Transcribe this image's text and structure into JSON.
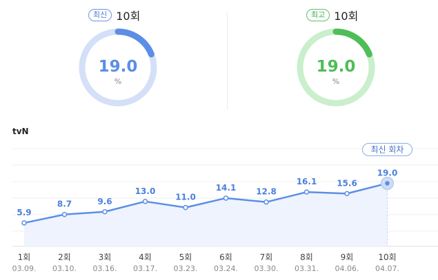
{
  "left_panel": {
    "badge": "최신",
    "episode": "10회",
    "value": "19.0",
    "unit": "%",
    "fraction": 0.19,
    "color": "#5b8ee6",
    "track_color": "#d4e0f8"
  },
  "right_panel": {
    "badge": "최고",
    "episode": "10회",
    "value": "19.0",
    "unit": "%",
    "fraction": 0.19,
    "color": "#4fbd58",
    "track_color": "#c9efcc"
  },
  "channel": "tvN",
  "latest_tag": "최신 회차",
  "chart_data": {
    "type": "area",
    "title": "",
    "xlabel": "",
    "ylabel": "",
    "categories": [
      "1회",
      "2회",
      "3회",
      "4회",
      "5회",
      "6회",
      "7회",
      "8회",
      "9회",
      "10회"
    ],
    "dates": [
      "03.09.",
      "03.10.",
      "03.16.",
      "03.17.",
      "03.23.",
      "03.24.",
      "03.30.",
      "03.31.",
      "04.06.",
      "04.07."
    ],
    "values": [
      5.9,
      8.7,
      9.6,
      13.0,
      11.0,
      14.1,
      12.8,
      16.1,
      15.6,
      19.0
    ],
    "value_labels": [
      "5.9",
      "8.7",
      "9.6",
      "13.0",
      "11.0",
      "14.1",
      "12.8",
      "16.1",
      "15.6",
      "19.0"
    ],
    "highlight_index": 9,
    "line_color": "#5b8ee6",
    "fill_color": "#eef3fd",
    "grid": true
  }
}
